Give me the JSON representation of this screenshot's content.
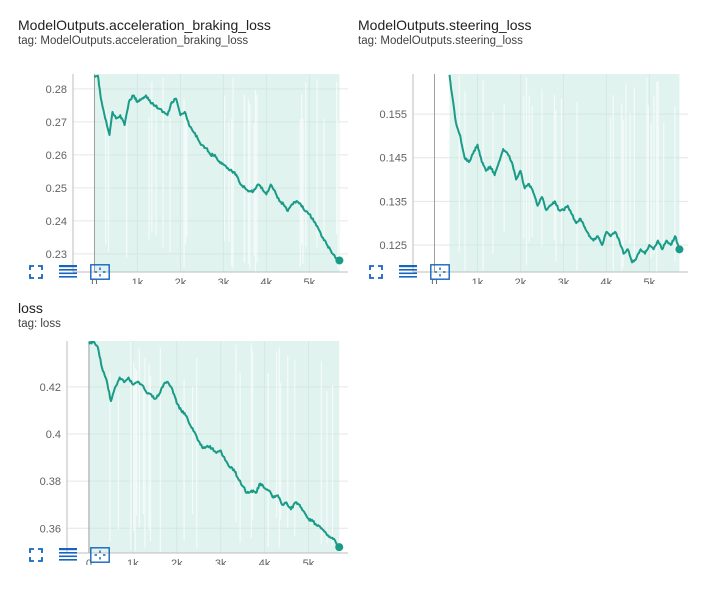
{
  "accent_color": "#1a9b87",
  "band_color": "#c7e9e2",
  "toolbar_icons": [
    "fullscreen-icon",
    "data-table-icon",
    "fit-domain-icon"
  ],
  "chart_data": [
    {
      "type": "line",
      "title": "ModelOutputs.acceleration_braking_loss",
      "subtitle": "tag: ModelOutputs.acceleration_braking_loss",
      "xlabel": "",
      "ylabel": "",
      "xlim": [
        -500,
        5900
      ],
      "ylim": [
        0.2245,
        0.2845
      ],
      "xticks": [
        0,
        1000,
        2000,
        3000,
        4000,
        5000
      ],
      "xtick_labels": [
        "0",
        "1k",
        "2k",
        "3k",
        "4k",
        "5k"
      ],
      "yticks": [
        0.23,
        0.24,
        0.25,
        0.26,
        0.27,
        0.28
      ],
      "ytick_labels": [
        "0.23",
        "0.24",
        "0.25",
        "0.26",
        "0.27",
        "0.28"
      ],
      "grid": true,
      "series": [
        {
          "x": [
            0,
            80,
            150,
            250,
            350,
            420,
            500,
            600,
            700,
            800,
            900,
            1000,
            1100,
            1200,
            1300,
            1400,
            1500,
            1600,
            1700,
            1800,
            1900,
            2000,
            2100,
            2200,
            2300,
            2400,
            2500,
            2600,
            2700,
            2800,
            2900,
            3000,
            3100,
            3200,
            3300,
            3400,
            3500,
            3600,
            3700,
            3800,
            3900,
            4000,
            4100,
            4200,
            4300,
            4400,
            4500,
            4600,
            4700,
            4800,
            4900,
            5000,
            5100,
            5200,
            5300,
            5400,
            5500,
            5600,
            5700
          ],
          "y": [
            0.284,
            0.284,
            0.277,
            0.271,
            0.266,
            0.273,
            0.271,
            0.272,
            0.269,
            0.276,
            0.278,
            0.276,
            0.277,
            0.278,
            0.276,
            0.275,
            0.274,
            0.273,
            0.272,
            0.276,
            0.277,
            0.272,
            0.273,
            0.269,
            0.267,
            0.265,
            0.263,
            0.262,
            0.26,
            0.26,
            0.258,
            0.257,
            0.256,
            0.255,
            0.254,
            0.251,
            0.25,
            0.249,
            0.249,
            0.251,
            0.25,
            0.248,
            0.251,
            0.249,
            0.246,
            0.245,
            0.243,
            0.245,
            0.246,
            0.245,
            0.243,
            0.242,
            0.24,
            0.238,
            0.235,
            0.233,
            0.231,
            0.229,
            0.228
          ]
        }
      ]
    },
    {
      "type": "line",
      "title": "ModelOutputs.steering_loss",
      "subtitle": "tag: ModelOutputs.steering_loss",
      "xlabel": "",
      "ylabel": "",
      "xlim": [
        -500,
        5900
      ],
      "ylim": [
        0.1188,
        0.1642
      ],
      "xticks": [
        0,
        1000,
        2000,
        3000,
        4000,
        5000
      ],
      "xtick_labels": [
        "0",
        "1k",
        "2k",
        "3k",
        "4k",
        "5k"
      ],
      "yticks": [
        0.125,
        0.135,
        0.145,
        0.155
      ],
      "ytick_labels": [
        "0.125",
        "0.135",
        "0.145",
        "0.155"
      ],
      "grid": true,
      "series": [
        {
          "x": [
            350,
            400,
            500,
            600,
            700,
            800,
            900,
            1000,
            1100,
            1200,
            1300,
            1400,
            1500,
            1600,
            1700,
            1800,
            1900,
            2000,
            2100,
            2200,
            2300,
            2400,
            2500,
            2600,
            2700,
            2800,
            2900,
            3000,
            3100,
            3200,
            3300,
            3400,
            3500,
            3600,
            3700,
            3800,
            3900,
            4000,
            4100,
            4200,
            4300,
            4400,
            4500,
            4600,
            4700,
            4800,
            4900,
            5000,
            5100,
            5200,
            5300,
            5400,
            5500,
            5600,
            5700
          ],
          "y": [
            0.164,
            0.16,
            0.153,
            0.15,
            0.145,
            0.144,
            0.146,
            0.148,
            0.144,
            0.142,
            0.143,
            0.141,
            0.144,
            0.147,
            0.146,
            0.144,
            0.14,
            0.142,
            0.138,
            0.139,
            0.137,
            0.134,
            0.136,
            0.133,
            0.134,
            0.135,
            0.133,
            0.133,
            0.134,
            0.132,
            0.13,
            0.131,
            0.129,
            0.127,
            0.126,
            0.127,
            0.125,
            0.128,
            0.127,
            0.128,
            0.126,
            0.123,
            0.124,
            0.121,
            0.122,
            0.124,
            0.123,
            0.125,
            0.124,
            0.126,
            0.124,
            0.126,
            0.125,
            0.127,
            0.124
          ]
        }
      ]
    },
    {
      "type": "line",
      "title": "loss",
      "subtitle": "tag: loss",
      "xlabel": "",
      "ylabel": "",
      "xlim": [
        -500,
        5900
      ],
      "ylim": [
        0.3495,
        0.4395
      ],
      "xticks": [
        0,
        1000,
        2000,
        3000,
        4000,
        5000
      ],
      "xtick_labels": [
        "0",
        "1k",
        "2k",
        "3k",
        "4k",
        "5k"
      ],
      "yticks": [
        0.36,
        0.38,
        0.4,
        0.42
      ],
      "ytick_labels": [
        "0.36",
        "0.38",
        "0.4",
        "0.42"
      ],
      "grid": true,
      "series": [
        {
          "x": [
            0,
            100,
            200,
            300,
            400,
            500,
            600,
            700,
            800,
            900,
            1000,
            1100,
            1200,
            1300,
            1400,
            1500,
            1600,
            1700,
            1800,
            1900,
            2000,
            2100,
            2200,
            2300,
            2400,
            2500,
            2600,
            2700,
            2800,
            2900,
            3000,
            3100,
            3200,
            3300,
            3400,
            3500,
            3600,
            3700,
            3800,
            3900,
            4000,
            4100,
            4200,
            4300,
            4400,
            4500,
            4600,
            4700,
            4800,
            4900,
            5000,
            5100,
            5200,
            5300,
            5400,
            5500,
            5600,
            5700
          ],
          "y": [
            0.439,
            0.439,
            0.437,
            0.428,
            0.423,
            0.414,
            0.42,
            0.424,
            0.422,
            0.424,
            0.421,
            0.422,
            0.421,
            0.418,
            0.417,
            0.415,
            0.417,
            0.421,
            0.422,
            0.419,
            0.413,
            0.41,
            0.408,
            0.404,
            0.401,
            0.397,
            0.394,
            0.395,
            0.394,
            0.392,
            0.393,
            0.389,
            0.386,
            0.385,
            0.381,
            0.378,
            0.375,
            0.376,
            0.375,
            0.379,
            0.377,
            0.376,
            0.373,
            0.374,
            0.37,
            0.371,
            0.368,
            0.371,
            0.37,
            0.367,
            0.364,
            0.363,
            0.361,
            0.36,
            0.358,
            0.356,
            0.355,
            0.352
          ]
        }
      ]
    }
  ]
}
